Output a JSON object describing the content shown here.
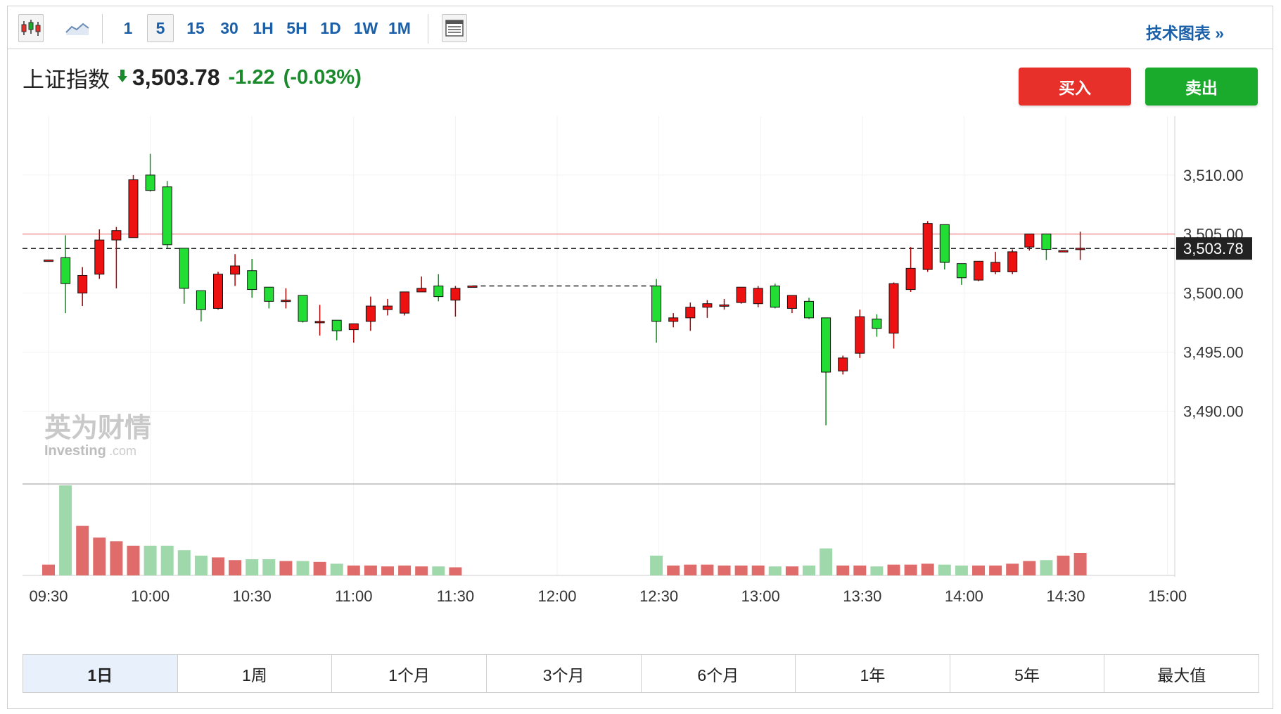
{
  "toolbar": {
    "chart_type_icons": [
      "candlestick-icon",
      "area-line-icon"
    ],
    "intervals": [
      "1",
      "5",
      "15",
      "30",
      "1H",
      "5H",
      "1D",
      "1W",
      "1M"
    ],
    "active_interval": "5",
    "layout_icon": "layout-icon",
    "tech_chart_label": "技术图表 »"
  },
  "quote": {
    "name": "上证指数",
    "direction_icon": "arrow-down-icon",
    "price": "3,503.78",
    "change": "-1.22",
    "change_pct": "(-0.03%)",
    "colors": {
      "down": "#1a8a2c",
      "up": "#e8302a"
    }
  },
  "actions": {
    "buy_label": "买入",
    "sell_label": "卖出"
  },
  "watermark": {
    "cn": "英为财情",
    "en": "Investing",
    "suffix": ".com"
  },
  "ranges": [
    "1日",
    "1周",
    "1个月",
    "3个月",
    "6个月",
    "1年",
    "5年",
    "最大值"
  ],
  "active_range": "1日",
  "chart_data": {
    "type": "candlestick",
    "ylim": [
      3484,
      3515
    ],
    "y_ticks": [
      "3,510.00",
      "3,505.00",
      "3,500.00",
      "3,495.00",
      "3,490.00"
    ],
    "y_tick_values": [
      3510,
      3505,
      3500,
      3495,
      3490
    ],
    "x_tick_labels": [
      "09:30",
      "10:00",
      "10:30",
      "11:00",
      "11:30",
      "12:00",
      "12:30",
      "13:00",
      "13:30",
      "14:00",
      "14:30",
      "15:00"
    ],
    "prev_close": 3505.0,
    "last_price": 3503.78,
    "last_price_label": "3,503.78",
    "colors": {
      "up": "#ee1111",
      "down": "#22dd33",
      "vol_up": "#e06b6b",
      "vol_down": "#9fd9ab",
      "prev_close": "#f08b8b"
    },
    "morning": [
      {
        "o": 3502.8,
        "h": 3502.8,
        "l": 3502.8,
        "c": 3502.8,
        "v": 12
      },
      {
        "o": 3503.0,
        "h": 3504.9,
        "l": 3498.3,
        "c": 3500.8,
        "v": 100
      },
      {
        "o": 3500.0,
        "h": 3502.2,
        "l": 3498.9,
        "c": 3501.5,
        "v": 55
      },
      {
        "o": 3501.6,
        "h": 3505.4,
        "l": 3501.2,
        "c": 3504.5,
        "v": 42
      },
      {
        "o": 3504.5,
        "h": 3505.6,
        "l": 3500.4,
        "c": 3505.3,
        "v": 38
      },
      {
        "o": 3504.7,
        "h": 3510.0,
        "l": 3504.7,
        "c": 3509.6,
        "v": 33
      },
      {
        "o": 3510.0,
        "h": 3511.8,
        "l": 3508.6,
        "c": 3508.7,
        "v": 33
      },
      {
        "o": 3509.0,
        "h": 3509.5,
        "l": 3503.8,
        "c": 3504.1,
        "v": 33
      },
      {
        "o": 3503.8,
        "h": 3503.8,
        "l": 3499.1,
        "c": 3500.4,
        "v": 28
      },
      {
        "o": 3500.2,
        "h": 3500.2,
        "l": 3497.6,
        "c": 3498.6,
        "v": 22
      },
      {
        "o": 3498.7,
        "h": 3501.8,
        "l": 3498.6,
        "c": 3501.6,
        "v": 20
      },
      {
        "o": 3501.6,
        "h": 3503.3,
        "l": 3500.6,
        "c": 3502.3,
        "v": 17
      },
      {
        "o": 3501.9,
        "h": 3502.9,
        "l": 3499.6,
        "c": 3500.3,
        "v": 18
      },
      {
        "o": 3500.5,
        "h": 3500.5,
        "l": 3498.7,
        "c": 3499.3,
        "v": 18
      },
      {
        "o": 3499.4,
        "h": 3500.4,
        "l": 3498.7,
        "c": 3499.4,
        "v": 16
      },
      {
        "o": 3499.8,
        "h": 3499.8,
        "l": 3497.5,
        "c": 3497.6,
        "v": 16
      },
      {
        "o": 3497.6,
        "h": 3499.0,
        "l": 3496.4,
        "c": 3497.6,
        "v": 15
      },
      {
        "o": 3497.7,
        "h": 3497.7,
        "l": 3496.0,
        "c": 3496.8,
        "v": 13
      },
      {
        "o": 3496.9,
        "h": 3496.9,
        "l": 3495.8,
        "c": 3497.4,
        "v": 11
      },
      {
        "o": 3497.6,
        "h": 3499.7,
        "l": 3496.8,
        "c": 3498.9,
        "v": 11
      },
      {
        "o": 3498.6,
        "h": 3499.5,
        "l": 3498.1,
        "c": 3498.9,
        "v": 10
      },
      {
        "o": 3498.3,
        "h": 3500.1,
        "l": 3498.1,
        "c": 3500.1,
        "v": 11
      },
      {
        "o": 3500.1,
        "h": 3501.4,
        "l": 3500.1,
        "c": 3500.4,
        "v": 10
      },
      {
        "o": 3500.6,
        "h": 3501.6,
        "l": 3499.3,
        "c": 3499.7,
        "v": 10
      },
      {
        "o": 3499.4,
        "h": 3500.6,
        "l": 3498.0,
        "c": 3500.4,
        "v": 9
      },
      {
        "o": 3500.6,
        "h": 3500.6,
        "l": 3500.6,
        "c": 3500.6,
        "v": 0
      }
    ],
    "afternoon": [
      {
        "o": 3500.6,
        "h": 3501.2,
        "l": 3495.8,
        "c": 3497.6,
        "v": 22
      },
      {
        "o": 3497.6,
        "h": 3498.3,
        "l": 3497.1,
        "c": 3497.9,
        "v": 11
      },
      {
        "o": 3497.9,
        "h": 3499.2,
        "l": 3496.8,
        "c": 3498.8,
        "v": 12
      },
      {
        "o": 3498.8,
        "h": 3499.4,
        "l": 3497.9,
        "c": 3499.1,
        "v": 12
      },
      {
        "o": 3499.0,
        "h": 3499.5,
        "l": 3498.6,
        "c": 3499.0,
        "v": 11
      },
      {
        "o": 3499.2,
        "h": 3500.4,
        "l": 3499.1,
        "c": 3500.5,
        "v": 11
      },
      {
        "o": 3499.1,
        "h": 3500.6,
        "l": 3498.8,
        "c": 3500.4,
        "v": 11
      },
      {
        "o": 3500.6,
        "h": 3500.8,
        "l": 3498.7,
        "c": 3498.8,
        "v": 10
      },
      {
        "o": 3498.7,
        "h": 3499.8,
        "l": 3498.3,
        "c": 3499.8,
        "v": 10
      },
      {
        "o": 3499.3,
        "h": 3499.6,
        "l": 3497.8,
        "c": 3497.9,
        "v": 11
      },
      {
        "o": 3497.9,
        "h": 3497.9,
        "l": 3488.8,
        "c": 3493.3,
        "v": 30
      },
      {
        "o": 3493.4,
        "h": 3494.7,
        "l": 3493.1,
        "c": 3494.5,
        "v": 11
      },
      {
        "o": 3494.9,
        "h": 3498.6,
        "l": 3494.5,
        "c": 3498.0,
        "v": 11
      },
      {
        "o": 3497.8,
        "h": 3498.2,
        "l": 3496.3,
        "c": 3497.0,
        "v": 10
      },
      {
        "o": 3496.6,
        "h": 3500.9,
        "l": 3495.3,
        "c": 3500.8,
        "v": 12
      },
      {
        "o": 3500.3,
        "h": 3503.9,
        "l": 3500.1,
        "c": 3502.1,
        "v": 12
      },
      {
        "o": 3502.0,
        "h": 3506.1,
        "l": 3501.8,
        "c": 3505.9,
        "v": 13
      },
      {
        "o": 3505.8,
        "h": 3505.8,
        "l": 3502.0,
        "c": 3502.6,
        "v": 12
      },
      {
        "o": 3502.5,
        "h": 3502.5,
        "l": 3500.7,
        "c": 3501.3,
        "v": 11
      },
      {
        "o": 3501.1,
        "h": 3502.6,
        "l": 3501.0,
        "c": 3502.7,
        "v": 11
      },
      {
        "o": 3501.8,
        "h": 3503.5,
        "l": 3501.6,
        "c": 3502.6,
        "v": 11
      },
      {
        "o": 3501.8,
        "h": 3503.7,
        "l": 3501.6,
        "c": 3503.5,
        "v": 13
      },
      {
        "o": 3503.9,
        "h": 3505.0,
        "l": 3503.6,
        "c": 3505.0,
        "v": 16
      },
      {
        "o": 3505.0,
        "h": 3505.0,
        "l": 3502.8,
        "c": 3503.7,
        "v": 17
      },
      {
        "o": 3503.6,
        "h": 3503.6,
        "l": 3503.6,
        "c": 3503.6,
        "v": 22
      },
      {
        "o": 3503.8,
        "h": 3505.2,
        "l": 3502.8,
        "c": 3503.8,
        "v": 25
      }
    ]
  }
}
